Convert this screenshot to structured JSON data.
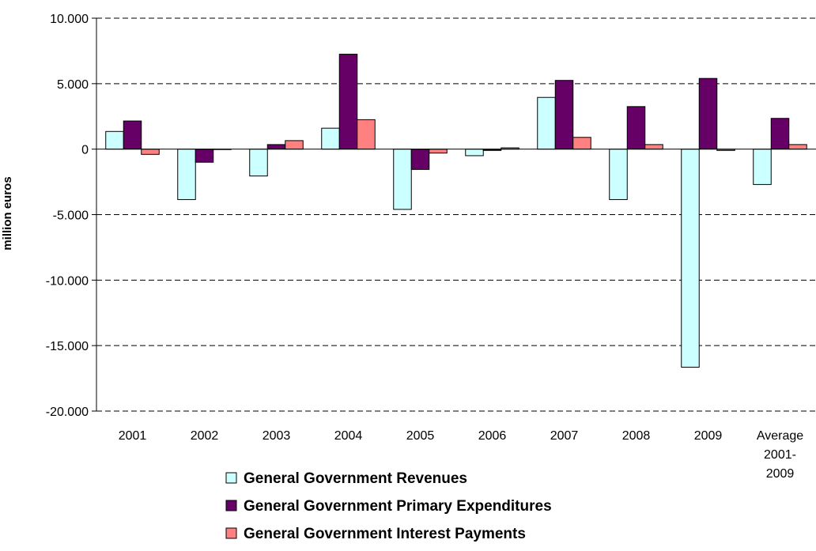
{
  "chart_data": {
    "type": "bar",
    "title": "",
    "xlabel": "",
    "ylabel": "million euros",
    "ylim": [
      -20000,
      10000
    ],
    "yticks": [
      10000,
      5000,
      0,
      -5000,
      -10000,
      -15000,
      -20000
    ],
    "ytick_labels": [
      "10.000",
      "5.000",
      "0",
      "-5.000",
      "-10.000",
      "-15.000",
      "-20.000"
    ],
    "grid": "horizontal-dashed",
    "legend_position": "bottom",
    "categories": [
      [
        "2001"
      ],
      [
        "2002"
      ],
      [
        "2003"
      ],
      [
        "2004"
      ],
      [
        "2005"
      ],
      [
        "2006"
      ],
      [
        "2007"
      ],
      [
        "2008"
      ],
      [
        "2009"
      ],
      [
        "Average",
        "2001-",
        "2009"
      ]
    ],
    "series": [
      {
        "name": "General Government Revenues",
        "color": "#ccffff",
        "values": [
          1350,
          -3850,
          -2050,
          1600,
          -4600,
          -500,
          3950,
          -3850,
          -16650,
          -2700
        ]
      },
      {
        "name": "General Government Primary Expenditures",
        "color": "#660066",
        "values": [
          2150,
          -1000,
          350,
          7250,
          -1550,
          -100,
          5250,
          3250,
          5400,
          2350
        ]
      },
      {
        "name": "General Government Interest Payments",
        "color": "#ff8080",
        "values": [
          -400,
          0,
          650,
          2250,
          -300,
          100,
          900,
          350,
          -100,
          350
        ]
      }
    ]
  }
}
